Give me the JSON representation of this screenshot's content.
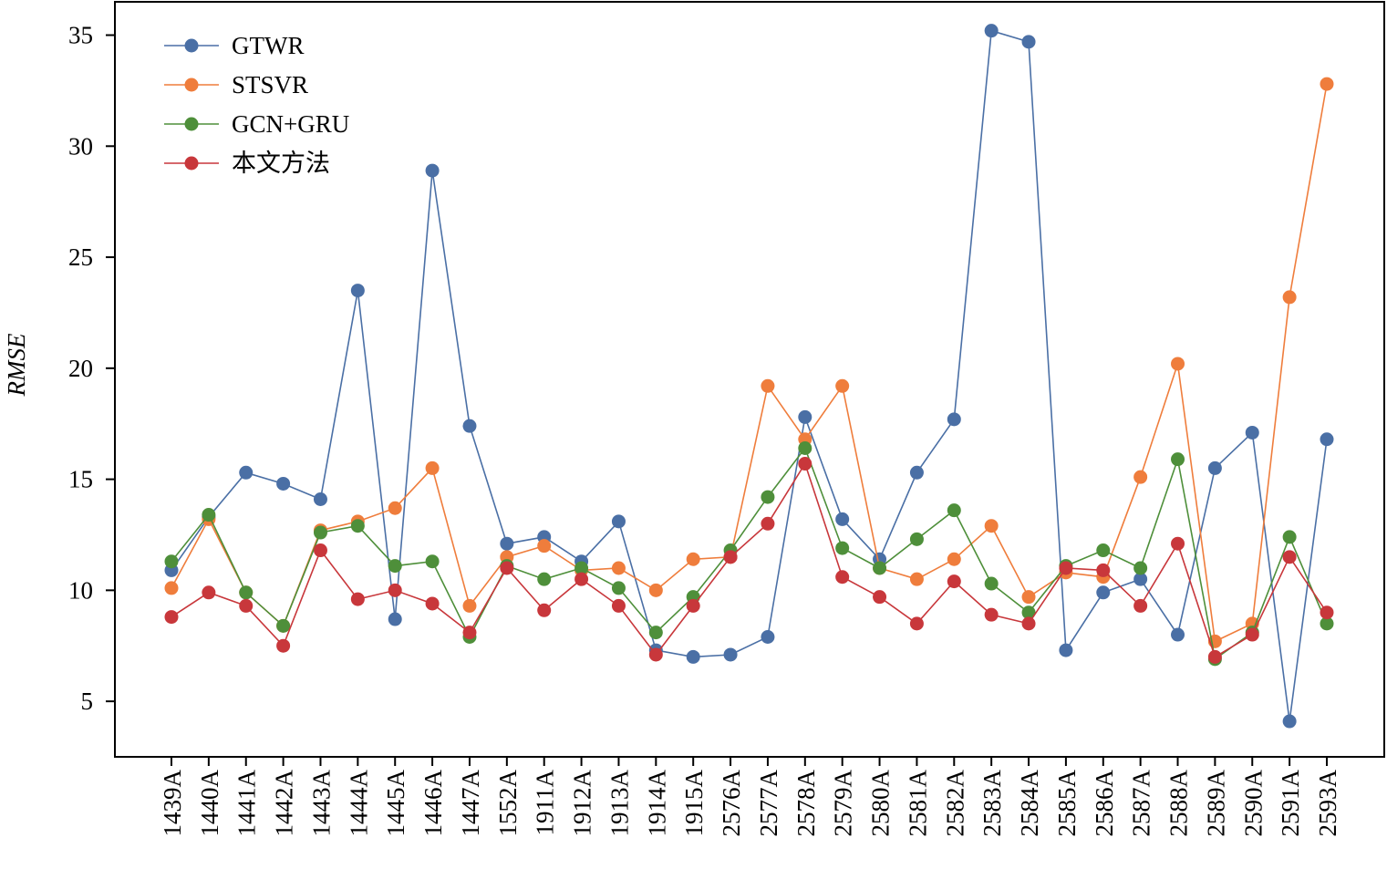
{
  "chart_data": {
    "type": "line",
    "title": "",
    "xlabel": "",
    "ylabel": "RMSE",
    "ylim": [
      2.5,
      36.5
    ],
    "yticks": [
      5,
      10,
      15,
      20,
      25,
      30,
      35
    ],
    "grid": false,
    "legend_position": "top-left",
    "categories": [
      "1439A",
      "1440A",
      "1441A",
      "1442A",
      "1443A",
      "1444A",
      "1445A",
      "1446A",
      "1447A",
      "1552A",
      "1911A",
      "1912A",
      "1913A",
      "1914A",
      "1915A",
      "2576A",
      "2577A",
      "2578A",
      "2579A",
      "2580A",
      "2581A",
      "2582A",
      "2583A",
      "2584A",
      "2585A",
      "2586A",
      "2587A",
      "2588A",
      "2589A",
      "2590A",
      "2591A",
      "2593A"
    ],
    "series": [
      {
        "name": "GTWR",
        "color": "#4a6fa5",
        "values": [
          10.9,
          13.3,
          15.3,
          14.8,
          14.1,
          23.5,
          8.7,
          28.9,
          17.4,
          12.1,
          12.4,
          11.3,
          13.1,
          7.3,
          7.0,
          7.1,
          7.9,
          17.8,
          13.2,
          11.4,
          15.3,
          17.7,
          35.2,
          34.7,
          7.3,
          9.9,
          10.5,
          8.0,
          15.5,
          17.1,
          4.1,
          16.8
        ]
      },
      {
        "name": "STSVR",
        "color": "#ef7d3c",
        "values": [
          10.1,
          13.2,
          9.9,
          8.4,
          12.7,
          13.1,
          13.7,
          15.5,
          9.3,
          11.5,
          12.0,
          10.9,
          11.0,
          10.0,
          11.4,
          11.5,
          19.2,
          16.8,
          19.2,
          11.0,
          10.5,
          11.4,
          12.9,
          9.7,
          10.8,
          10.6,
          15.1,
          20.2,
          7.7,
          8.5,
          23.2,
          32.8
        ]
      },
      {
        "name": "GCN+GRU",
        "color": "#4e8f3a",
        "values": [
          11.3,
          13.4,
          9.9,
          8.4,
          12.6,
          12.9,
          11.1,
          11.3,
          7.9,
          11.1,
          10.5,
          11.0,
          10.1,
          8.1,
          9.7,
          11.8,
          14.2,
          16.4,
          11.9,
          11.0,
          12.3,
          13.6,
          10.3,
          9.0,
          11.1,
          11.8,
          11.0,
          15.9,
          6.9,
          8.1,
          12.4,
          8.5
        ]
      },
      {
        "name": "本文方法",
        "color": "#c8373b",
        "values": [
          8.8,
          9.9,
          9.3,
          7.5,
          11.8,
          9.6,
          10.0,
          9.4,
          8.1,
          11.0,
          9.1,
          10.5,
          9.3,
          7.1,
          9.3,
          11.5,
          13.0,
          15.7,
          10.6,
          9.7,
          8.5,
          10.4,
          8.9,
          8.5,
          11.0,
          10.9,
          9.3,
          12.1,
          7.0,
          8.0,
          11.5,
          9.0
        ]
      }
    ]
  }
}
